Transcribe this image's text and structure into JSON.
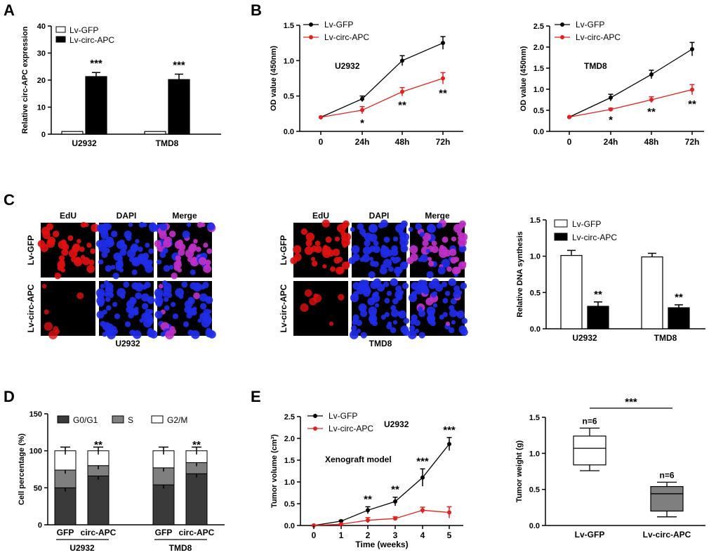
{
  "panels": {
    "A": "A",
    "B": "B",
    "C": "C",
    "D": "D",
    "E": "E"
  },
  "colors": {
    "red": "#e8201d",
    "black": "#000000",
    "dark": "#3a3a3a",
    "mid": "#7f7f7f",
    "white": "#ffffff",
    "dapi": "#1f2de8",
    "edu": "#e01010",
    "merge": "#c030c8"
  },
  "chart_data": [
    {
      "id": "A",
      "type": "bar",
      "title": "",
      "ylabel": "Relative circ-APC expression",
      "ylim": [
        0,
        40
      ],
      "yticks": [
        0,
        10,
        20,
        30,
        40
      ],
      "categories": [
        "U2932",
        "TMD8"
      ],
      "series": [
        {
          "name": "Lv-GFP",
          "values": [
            1,
            1
          ],
          "errors": [
            0,
            0
          ]
        },
        {
          "name": "Lv-circ-APC",
          "values": [
            21.3,
            20.2
          ],
          "errors": [
            1.5,
            2.0
          ]
        }
      ],
      "annotations": [
        "***",
        "***"
      ]
    },
    {
      "id": "B1",
      "type": "line",
      "label": "U2932",
      "ylabel": "OD value (450nm)",
      "ylim": [
        0,
        1.5
      ],
      "yticks": [
        "0.0",
        "0.5",
        "1.0",
        "1.5"
      ],
      "categories": [
        "0",
        "24h",
        "48h",
        "72h"
      ],
      "series": [
        {
          "name": "Lv-GFP",
          "values": [
            0.2,
            0.46,
            1.0,
            1.25
          ],
          "errors": [
            0,
            0.04,
            0.07,
            0.09
          ]
        },
        {
          "name": "Lv-circ-APC",
          "values": [
            0.2,
            0.3,
            0.56,
            0.75
          ],
          "errors": [
            0,
            0.05,
            0.06,
            0.08
          ]
        }
      ],
      "annotations": [
        "*",
        "**",
        "**"
      ]
    },
    {
      "id": "B2",
      "type": "line",
      "label": "TMD8",
      "ylabel": "OD value (450nm)",
      "ylim": [
        0,
        2.5
      ],
      "yticks": [
        "0.0",
        "0.5",
        "1.0",
        "1.5",
        "2.0",
        "2.5"
      ],
      "categories": [
        "0",
        "24h",
        "48h",
        "72h"
      ],
      "series": [
        {
          "name": "Lv-GFP",
          "values": [
            0.34,
            0.8,
            1.35,
            1.95
          ],
          "errors": [
            0,
            0.08,
            0.1,
            0.16
          ]
        },
        {
          "name": "Lv-circ-APC",
          "values": [
            0.34,
            0.52,
            0.75,
            0.99
          ],
          "errors": [
            0,
            0.03,
            0.07,
            0.12
          ]
        }
      ],
      "annotations": [
        "*",
        "**",
        "**"
      ]
    },
    {
      "id": "C",
      "type": "bar",
      "ylabel": "Relative DNA synthesis",
      "ylim": [
        0,
        1.5
      ],
      "yticks": [
        "0.0",
        "0.5",
        "1.0",
        "1.5"
      ],
      "categories": [
        "U2932",
        "TMD8"
      ],
      "series": [
        {
          "name": "Lv-GFP",
          "values": [
            1.01,
            0.99
          ],
          "errors": [
            0.07,
            0.05
          ]
        },
        {
          "name": "Lv-circ-APC",
          "values": [
            0.31,
            0.29
          ],
          "errors": [
            0.06,
            0.04
          ]
        }
      ],
      "annotations": [
        "**",
        "**"
      ]
    },
    {
      "id": "D",
      "type": "bar",
      "ylabel": "Cell percentage (%)",
      "ylim": [
        0,
        150
      ],
      "yticks": [
        0,
        50,
        100,
        150
      ],
      "categories": [
        "GFP",
        "circ-APC",
        "GFP",
        "circ-APC"
      ],
      "groups": [
        "U2932",
        "TMD8"
      ],
      "series": [
        {
          "name": "G0/G1",
          "values": [
            50,
            66,
            54,
            69
          ],
          "errors": [
            5,
            5,
            5,
            5
          ]
        },
        {
          "name": "S",
          "values": [
            24,
            14,
            23,
            15
          ],
          "errors": [
            5,
            5,
            5,
            5
          ]
        },
        {
          "name": "G2/M",
          "values": [
            26,
            20,
            23,
            16
          ],
          "errors": [
            5,
            5,
            5,
            5
          ]
        }
      ],
      "annotations": [
        "**",
        "**"
      ]
    },
    {
      "id": "E1",
      "type": "line",
      "label": "U2932",
      "note": "Xenograft model",
      "xlabel": "Time (weeks)",
      "ylabel": "Tumor volume (cm³)",
      "ylim": [
        0,
        2.5
      ],
      "yticks": [
        "0.0",
        "0.5",
        "1.0",
        "1.5",
        "2.0",
        "2.5"
      ],
      "x": [
        0,
        1,
        2,
        3,
        4,
        5
      ],
      "series": [
        {
          "name": "Lv-GFP",
          "values": [
            0,
            0.1,
            0.35,
            0.55,
            1.1,
            1.87
          ],
          "errors": [
            0,
            0.02,
            0.08,
            0.1,
            0.2,
            0.15
          ]
        },
        {
          "name": "Lv-circ-APC",
          "values": [
            0,
            0.03,
            0.12,
            0.16,
            0.35,
            0.3
          ],
          "errors": [
            0,
            0.01,
            0.06,
            0.04,
            0.07,
            0.13
          ]
        }
      ],
      "annotations": [
        "**",
        "**",
        "***",
        "***"
      ]
    },
    {
      "id": "E2",
      "type": "box",
      "ylabel": "Tumor weight (g)",
      "ylim": [
        0,
        1.5
      ],
      "yticks": [
        "0.0",
        "0.5",
        "1.0",
        "1.5"
      ],
      "categories": [
        "Lv-GFP",
        "Lv-circ-APC"
      ],
      "boxes": [
        {
          "min": 0.76,
          "q1": 0.84,
          "median": 1.07,
          "q3": 1.24,
          "max": 1.35,
          "n": "n=6"
        },
        {
          "min": 0.12,
          "q1": 0.2,
          "median": 0.44,
          "q3": 0.54,
          "max": 0.6,
          "n": "n=6"
        }
      ],
      "significance": "***"
    }
  ],
  "micro": {
    "headers": [
      "EdU",
      "DAPI",
      "Merge"
    ],
    "rows": [
      "Lv-GFP",
      "Lv-circ-APC"
    ],
    "captions": [
      "U2932",
      "TMD8"
    ]
  }
}
